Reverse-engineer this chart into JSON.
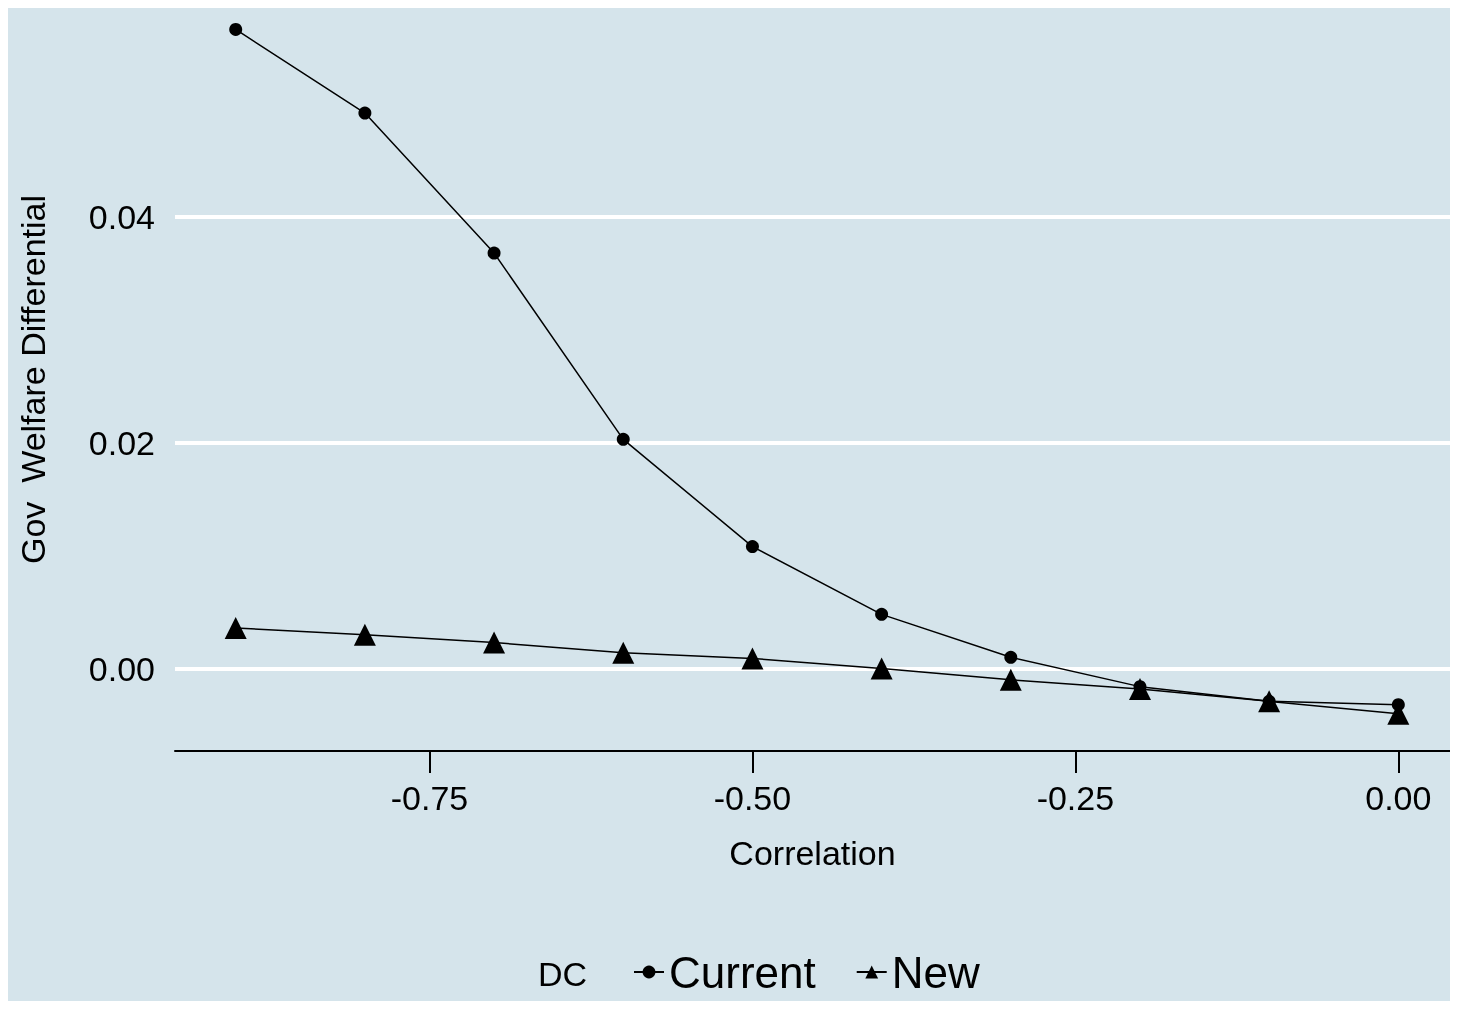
{
  "chart_data": {
    "type": "line",
    "xlabel": "Correlation",
    "ylabel": "Gov  Welfare Differential",
    "legend_title": "DC",
    "legend": "bottom",
    "grid": "y",
    "x": [
      -0.9,
      -0.8,
      -0.7,
      -0.6,
      -0.5,
      -0.4,
      -0.3,
      -0.2,
      -0.1,
      0
    ],
    "xlim": [
      -0.947,
      0.04
    ],
    "xticks": [
      -0.75,
      {
        "value": -0.5,
        "label": "-0.50"
      },
      -0.25,
      {
        "value": 0,
        "label": "0.00"
      }
    ],
    "ylim": [
      -0.0073,
      0.0585
    ],
    "yticks": [
      {
        "value": 0,
        "label": "0.00"
      },
      0.02,
      0.04
    ],
    "series": [
      {
        "name": "Current",
        "color": "#000000",
        "marker": "circle",
        "values": [
          0.0566,
          0.0492,
          0.0368,
          0.0203,
          0.0108,
          0.0048,
          0.001,
          -0.0016,
          -0.0029,
          -0.0032
        ]
      },
      {
        "name": "New",
        "color": "#000000",
        "marker": "triangle",
        "values": [
          0.0036,
          0.003,
          0.0023,
          0.0014,
          0.0009,
          0.0,
          -0.001,
          -0.0018,
          -0.0029,
          -0.004
        ]
      }
    ]
  }
}
